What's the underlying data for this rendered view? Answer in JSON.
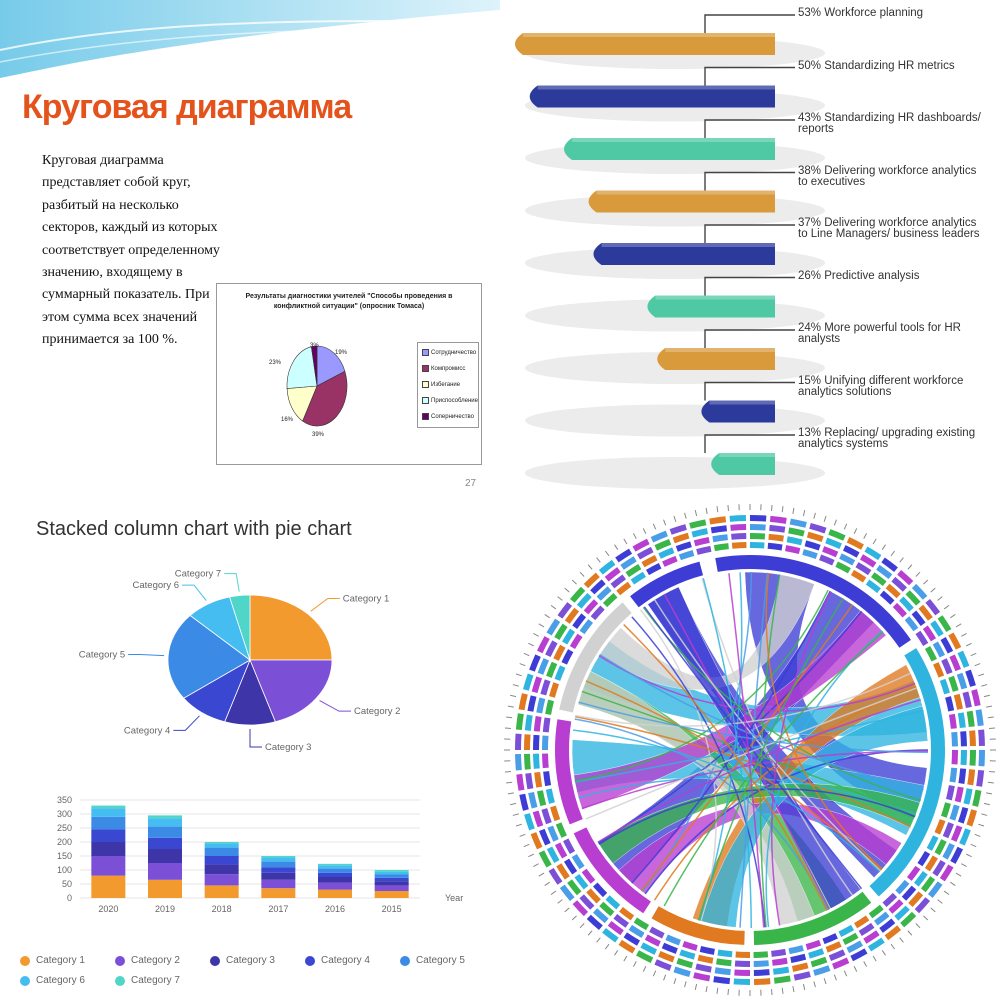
{
  "slide": {
    "title": "Круговая диаграмма",
    "text": "Круговая диаграмма представляет собой круг, разбитый на несколько секторов, каждый из которых соответствует определенному значению, входящему в суммарный показатель. При этом сумма всех значений принимается за 100 %.",
    "page_number": "27"
  },
  "chart_data": [
    {
      "type": "pie",
      "title": "Результаты диагностики учителей \"Способы проведения в конфликтной ситуации\" (опросник Томаса)",
      "categories": [
        "Сотрудничество",
        "Компромисс",
        "Избегание",
        "Приспособление",
        "Соперничество"
      ],
      "values": [
        19,
        39,
        16,
        23,
        3
      ],
      "labels": [
        "19%",
        "39%",
        "16%",
        "23%",
        "3%"
      ],
      "colors": [
        "#9999ff",
        "#993366",
        "#ffffcc",
        "#ccffff",
        "#660066"
      ],
      "legend": "right"
    },
    {
      "type": "bar",
      "orientation": "funnel",
      "categories": [
        "Workforce planning",
        "Standardizing HR metrics",
        "Standardizing HR dashboards/ reports",
        "Delivering workforce analytics to executives",
        "Delivering workforce analytics to Line Managers/ business leaders",
        "Predictive analysis",
        "More powerful tools for HR analysts",
        "Unifying different workforce analytics solutions",
        "Replacing/ upgrading existing analytics systems"
      ],
      "values": [
        53,
        50,
        43,
        38,
        37,
        26,
        24,
        15,
        13
      ],
      "labels": [
        "53% Workforce planning",
        "50% Standardizing HR metrics",
        "43% Standardizing HR dashboards/ reports",
        "38% Delivering workforce analytics to executives",
        "37% Delivering workforce analytics to Line Managers/ business leaders",
        "26% Predictive analysis",
        "24% More powerful tools for HR analysts",
        "15% Unifying different workforce analytics solutions",
        "13% Replacing/ upgrading existing analytics systems"
      ],
      "colors": [
        "#d99a3b",
        "#2b3a9b",
        "#4ec9a3",
        "#d99a3b",
        "#2b3a9b",
        "#4ec9a3",
        "#d99a3b",
        "#2b3a9b",
        "#4ec9a3"
      ]
    },
    {
      "type": "pie",
      "title": "Stacked column chart with pie chart",
      "categories": [
        "Category 1",
        "Category 2",
        "Category 3",
        "Category 4",
        "Category 5",
        "Category 6",
        "Category 7"
      ],
      "values": [
        25,
        20,
        10,
        10,
        22,
        9,
        4
      ],
      "colors": [
        "#f29a2e",
        "#7b4fd6",
        "#3d35a8",
        "#3a47d1",
        "#3b8ae6",
        "#45bdf0",
        "#4fd6c9"
      ]
    },
    {
      "type": "bar",
      "stacked": true,
      "categories": [
        "2020",
        "2019",
        "2018",
        "2017",
        "2016",
        "2015"
      ],
      "series": [
        {
          "name": "Category 1",
          "values": [
            80,
            65,
            45,
            35,
            30,
            25
          ]
        },
        {
          "name": "Category 2",
          "values": [
            70,
            60,
            40,
            30,
            25,
            20
          ]
        },
        {
          "name": "Category 3",
          "values": [
            50,
            50,
            35,
            25,
            20,
            15
          ]
        },
        {
          "name": "Category 4",
          "values": [
            45,
            40,
            30,
            20,
            15,
            12
          ]
        },
        {
          "name": "Category 5",
          "values": [
            45,
            40,
            30,
            20,
            15,
            12
          ]
        },
        {
          "name": "Category 6",
          "values": [
            30,
            30,
            15,
            15,
            12,
            10
          ]
        },
        {
          "name": "Category 7",
          "values": [
            10,
            10,
            5,
            5,
            5,
            6
          ]
        }
      ],
      "colors": [
        "#f29a2e",
        "#7b4fd6",
        "#3d35a8",
        "#3a47d1",
        "#3b8ae6",
        "#45bdf0",
        "#4fd6c9"
      ],
      "xlabel": "Year",
      "ylim": [
        0,
        350
      ],
      "yticks": [
        "0",
        "50",
        "100",
        "150",
        "200",
        "250",
        "300",
        "350"
      ],
      "grid": true,
      "legend": "bottom"
    },
    {
      "type": "chord",
      "segments": [
        "#3d3dd6",
        "#2fb4e0",
        "#e0791f",
        "#b83dd1",
        "#3ab54a",
        "#d1d1d1",
        "#4a9ee8"
      ]
    }
  ]
}
